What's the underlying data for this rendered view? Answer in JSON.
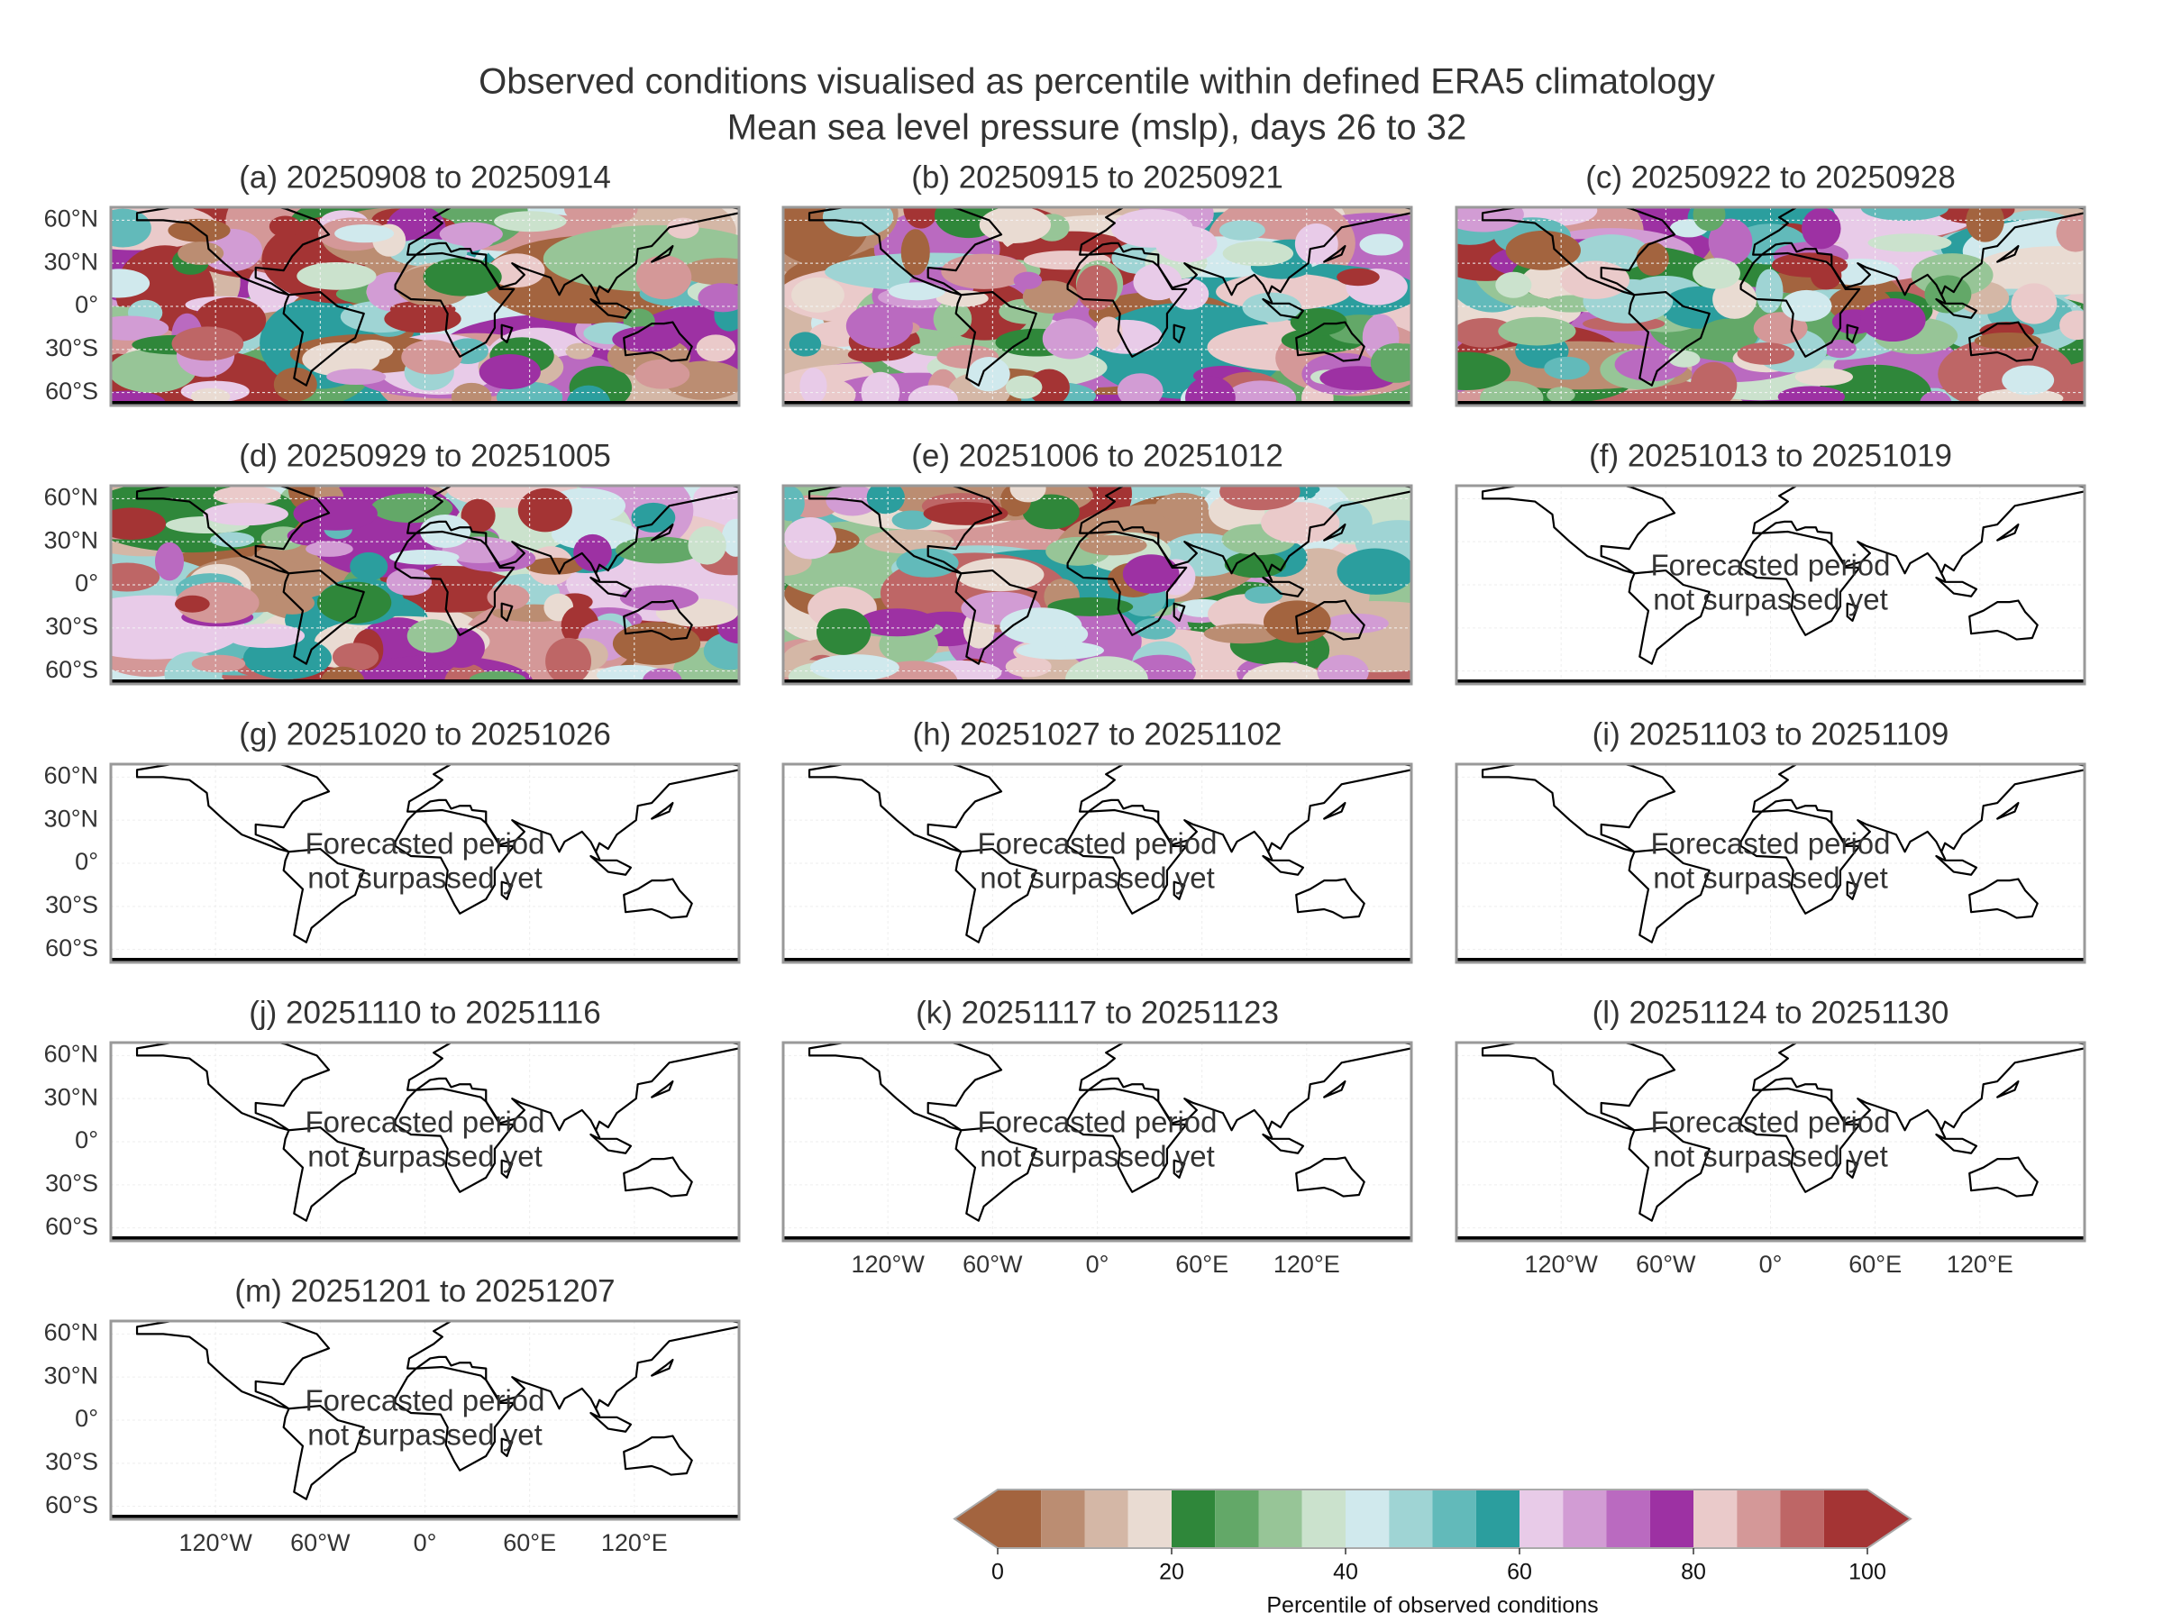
{
  "title": [
    "Observed conditions visualised as percentile within defined ERA5 climatology",
    "Mean sea level pressure (mslp), days 26 to 32"
  ],
  "map_axes": {
    "xlim": [
      -180,
      180
    ],
    "ylim": [
      -69,
      69
    ],
    "xticks": [
      {
        "value": -120,
        "label": "120°W"
      },
      {
        "value": -60,
        "label": "60°W"
      },
      {
        "value": 0,
        "label": "0°"
      },
      {
        "value": 60,
        "label": "60°E"
      },
      {
        "value": 120,
        "label": "120°E"
      }
    ],
    "yticks": [
      {
        "value": 60,
        "label": "60°N"
      },
      {
        "value": 30,
        "label": "30°N"
      },
      {
        "value": 0,
        "label": "0°"
      },
      {
        "value": -30,
        "label": "30°S"
      },
      {
        "value": -60,
        "label": "60°S"
      }
    ]
  },
  "panels": [
    {
      "title": "(a) 20250908 to 20250914"
    },
    {
      "title": "(b) 20250915 to 20250921"
    },
    {
      "title": "(c) 20250922 to 20250928"
    },
    {
      "title": "(d) 20250929 to 20251005"
    },
    {
      "title": "(e) 20251006 to 20251012"
    },
    {
      "title": "(f) 20251013 to 20251019",
      "status_text": [
        "Forecasted period",
        "not surpassed yet"
      ]
    },
    {
      "title": "(g) 20251020 to 20251026",
      "status_text": [
        "Forecasted period",
        "not surpassed yet"
      ]
    },
    {
      "title": "(h) 20251027 to 20251102",
      "status_text": [
        "Forecasted period",
        "not surpassed yet"
      ]
    },
    {
      "title": "(i) 20251103 to 20251109",
      "status_text": [
        "Forecasted period",
        "not surpassed yet"
      ]
    },
    {
      "title": "(j) 20251110 to 20251116",
      "status_text": [
        "Forecasted period",
        "not surpassed yet"
      ]
    },
    {
      "title": "(k) 20251117 to 20251123",
      "status_text": [
        "Forecasted period",
        "not surpassed yet"
      ]
    },
    {
      "title": "(l) 20251124 to 20251130",
      "status_text": [
        "Forecasted period",
        "not surpassed yet"
      ]
    },
    {
      "title": "(m) 20251201 to 20251207",
      "status_text": [
        "Forecasted period",
        "not surpassed yet"
      ]
    }
  ],
  "colorbar": {
    "label": "Percentile of observed conditions",
    "lim": [
      0,
      100
    ],
    "ticks": [
      0,
      20,
      40,
      60,
      80,
      100
    ],
    "boundaries": [
      0,
      5,
      10,
      15,
      20,
      25,
      30,
      35,
      40,
      45,
      50,
      55,
      60,
      65,
      70,
      75,
      80,
      85,
      90,
      95,
      100
    ],
    "colors": [
      "#a3643f",
      "#bb8d72",
      "#d4b7a6",
      "#e9dbd2",
      "#2f873a",
      "#63a868",
      "#97c597",
      "#cbe2cd",
      "#d0e9ed",
      "#9fd4d4",
      "#62baba",
      "#2b9e9e",
      "#e8cbe8",
      "#d29cd4",
      "#ba6ac0",
      "#9d31a3",
      "#eacaca",
      "#d49898",
      "#be6666",
      "#a43434"
    ],
    "extend": "both"
  }
}
